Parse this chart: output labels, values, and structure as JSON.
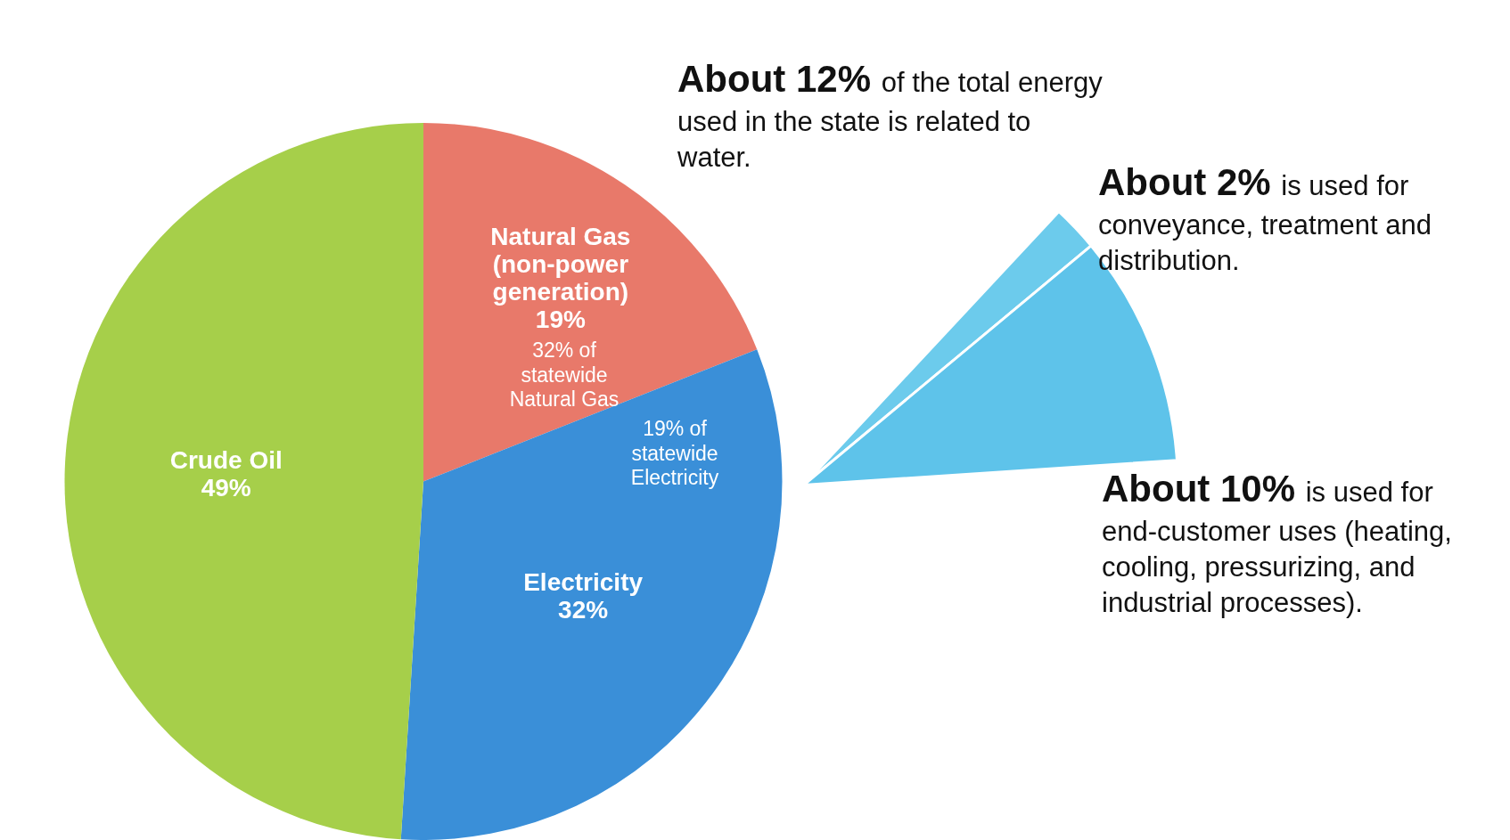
{
  "chart_data": [
    {
      "type": "pie",
      "categories": [
        "Natural Gas (non-power generation)",
        "Electricity",
        "Crude Oil"
      ],
      "values": [
        19,
        32,
        49
      ],
      "colors": [
        "#e8796a",
        "#3a8fd8",
        "#a6cf4a"
      ],
      "value_labels": [
        "19%",
        "32%",
        "49%"
      ],
      "annotations": [
        "About 12% of the total energy used in the state is related to water.",
        "32% of statewide Natural Gas",
        "19% of statewide Electricity"
      ]
    },
    {
      "type": "pie",
      "categories": [
        "About 2% is used for conveyance, treatment and distribution.",
        "About 10% is used for end-customer uses (heating, cooling, pressurizing, and industrial processes)."
      ],
      "values": [
        2,
        10
      ],
      "colors": [
        "#6ccbec",
        "#5ec3ea"
      ]
    }
  ]
}
